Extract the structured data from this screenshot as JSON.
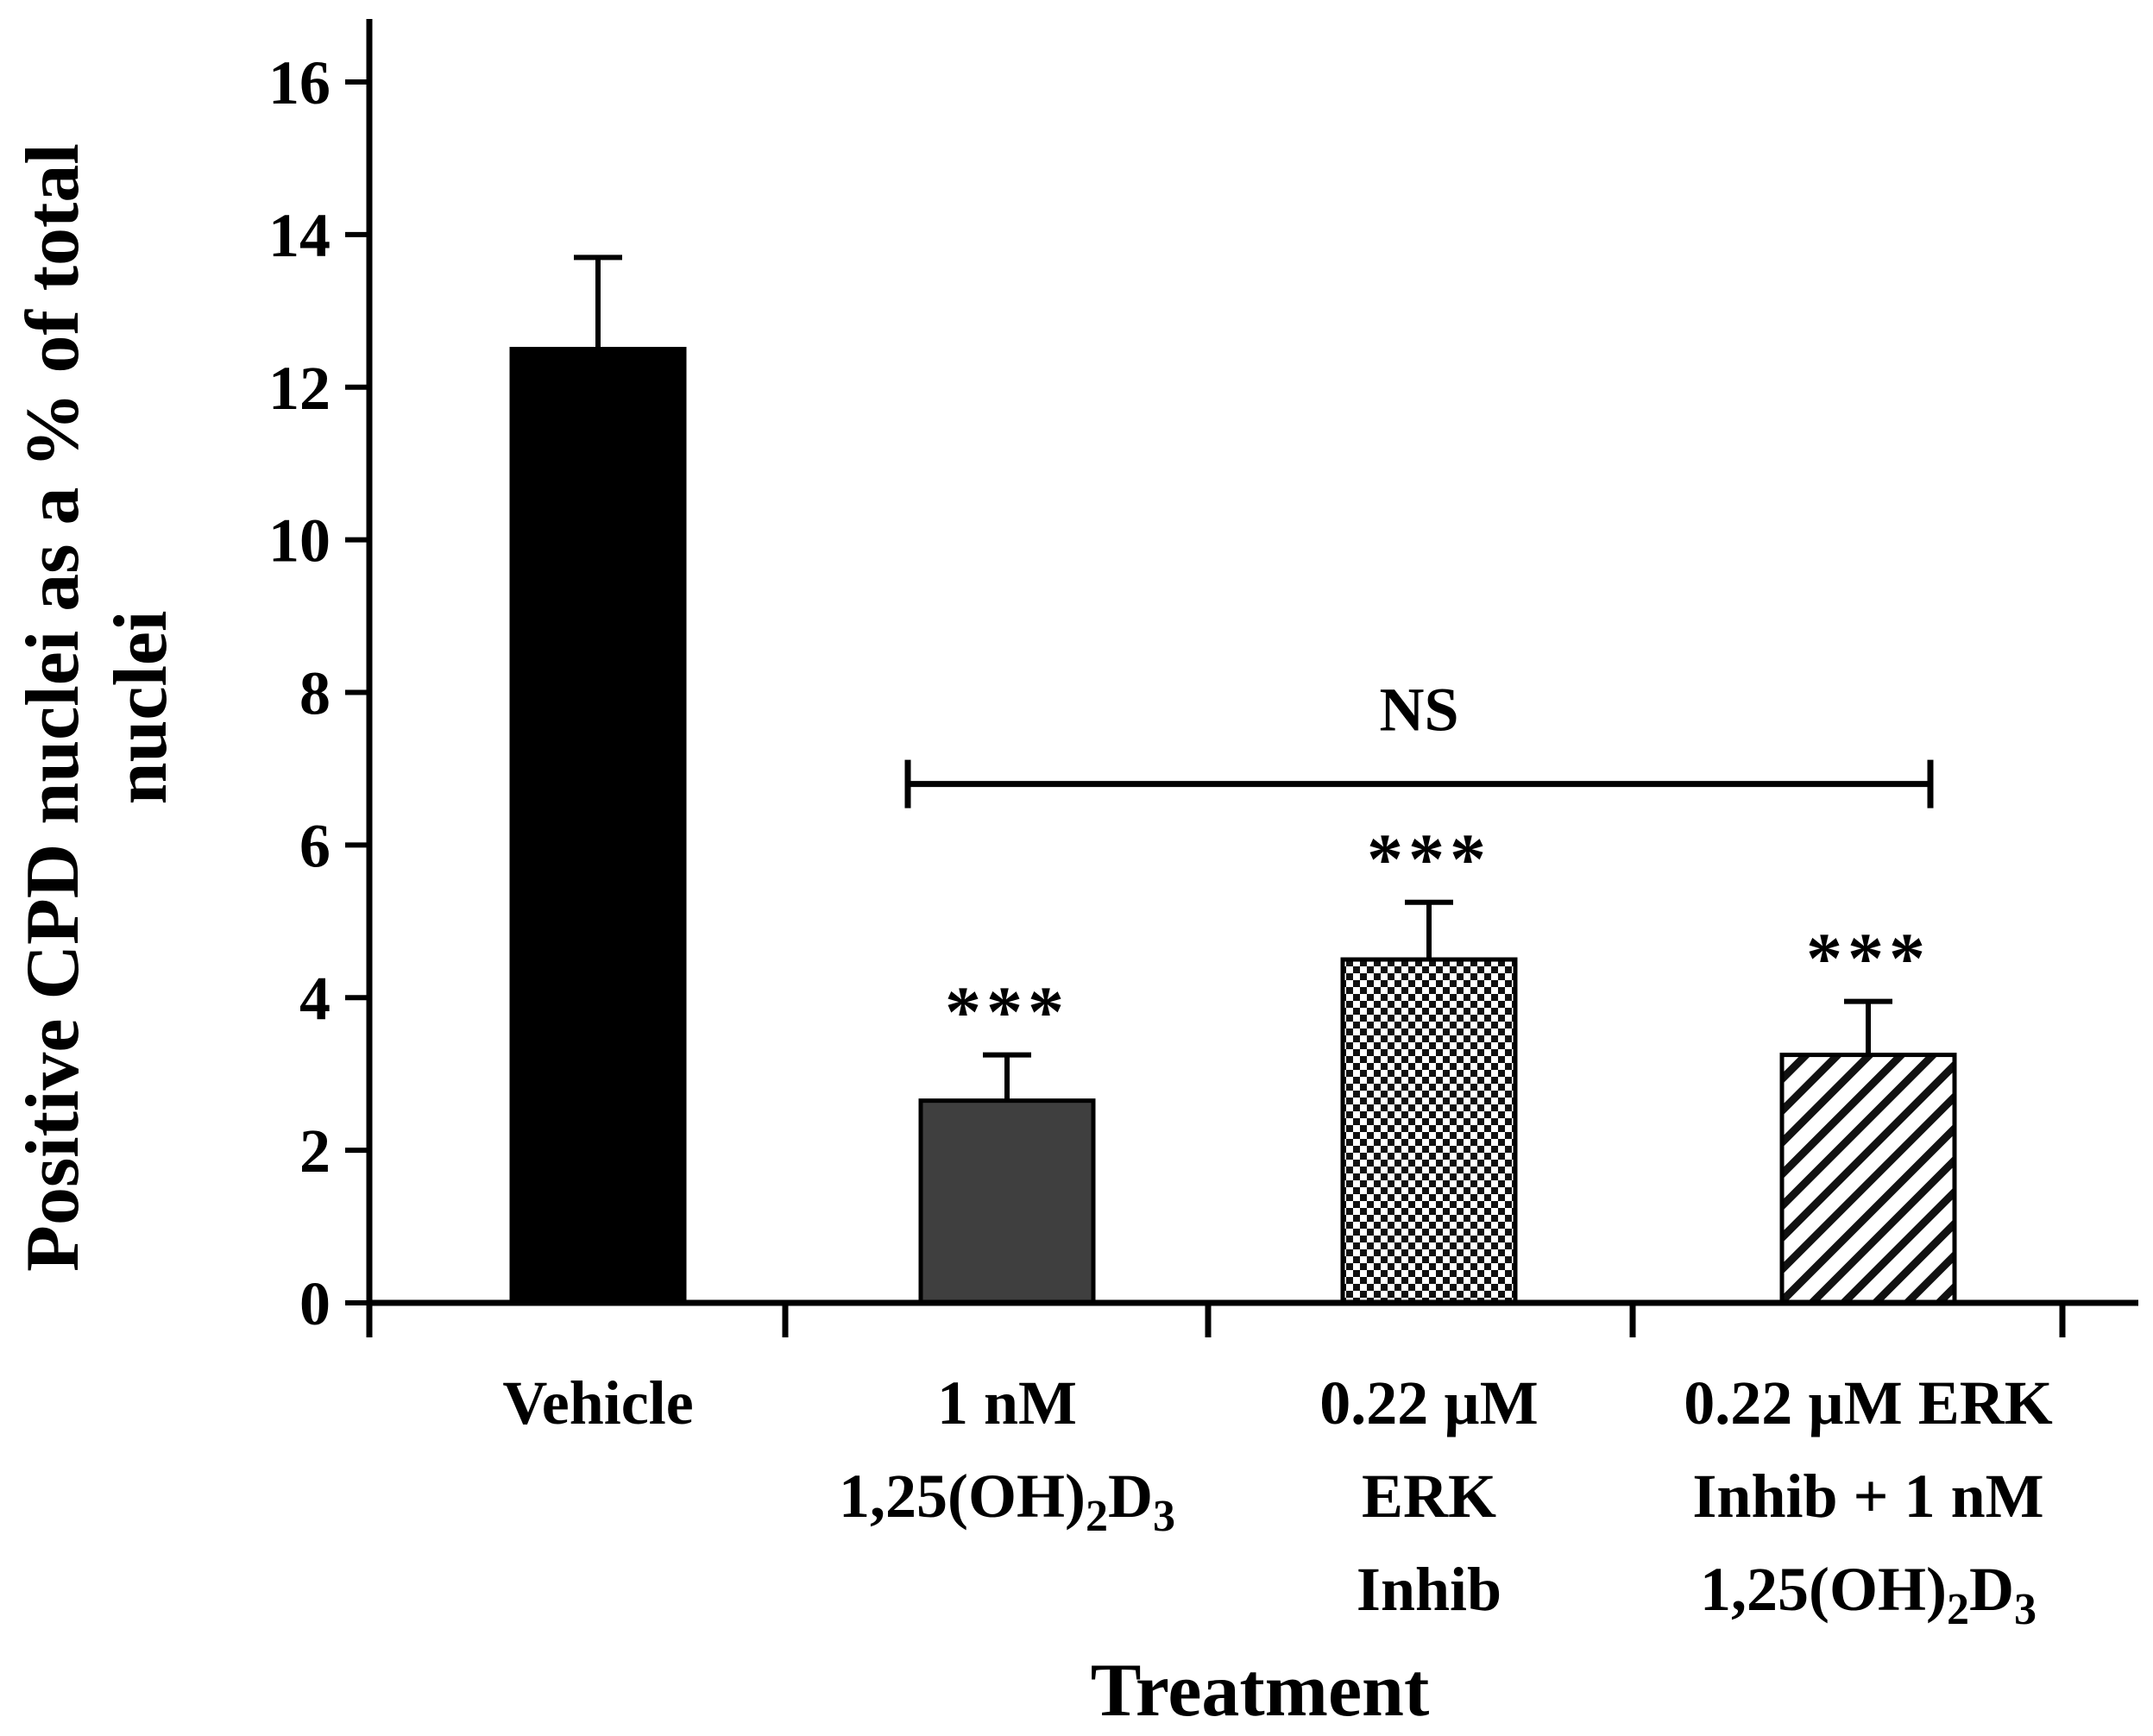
{
  "chart_data": {
    "type": "bar",
    "title": "",
    "xlabel": "Treatment",
    "ylabel_lines": [
      "Positive CPD nuclei as a % of total",
      "nuclei"
    ],
    "ylim": [
      0,
      16
    ],
    "yticks": [
      0,
      2,
      4,
      6,
      8,
      10,
      12,
      14,
      16
    ],
    "grid": false,
    "legend": "none",
    "categories": [
      {
        "lines": [
          {
            "text": "Vehicle"
          }
        ]
      },
      {
        "lines": [
          {
            "text": "1 nM"
          },
          {
            "text": "1,25(OH)",
            "sub1": "2",
            "mid": "D",
            "sub2": "3"
          }
        ]
      },
      {
        "lines": [
          {
            "text": "0.22 µM"
          },
          {
            "text": "ERK"
          },
          {
            "text": "Inhib"
          }
        ]
      },
      {
        "lines": [
          {
            "text": "0.22 µM ERK"
          },
          {
            "text": "Inhib + 1 nM"
          },
          {
            "text": "1,25(OH)",
            "sub1": "2",
            "mid": "D",
            "sub2": "3"
          }
        ]
      }
    ],
    "values": [
      12.5,
      2.65,
      4.5,
      3.25
    ],
    "errors": [
      1.2,
      0.6,
      0.75,
      0.7
    ],
    "fills": [
      "solid-black",
      "solid-darkgray",
      "checkerboard",
      "diagonal-hatch"
    ],
    "significance": [
      "",
      "***",
      "***",
      "***"
    ],
    "comparison": {
      "label": "NS",
      "from_category": 1,
      "to_category": 3,
      "y": 6.8
    }
  },
  "colors": {
    "vehicle": "#000000",
    "vitd": "#3f3f3f",
    "outline": "#000000",
    "background": "#ffffff"
  }
}
